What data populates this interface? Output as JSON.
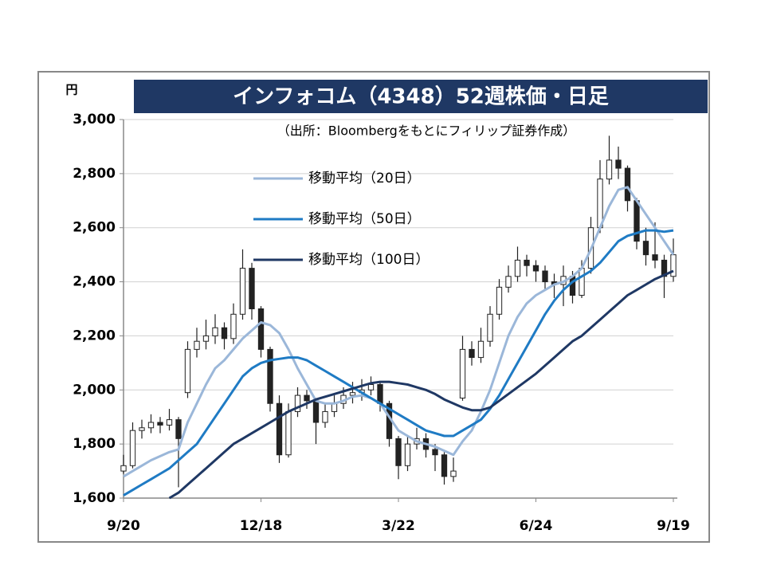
{
  "chart_data": {
    "type": "candlestick",
    "title": "インフォコム（4348）52週株価・日足",
    "subtitle": "（出所：Bloombergをもとにフィリップ証券作成）",
    "y_unit": "円",
    "categories": [
      "9/20",
      null,
      null,
      null,
      null,
      null,
      null,
      null,
      null,
      null,
      null,
      null,
      null,
      null,
      null,
      "12/18",
      null,
      null,
      null,
      null,
      null,
      null,
      null,
      null,
      null,
      null,
      null,
      null,
      null,
      null,
      "3/22",
      null,
      null,
      null,
      null,
      null,
      null,
      null,
      null,
      null,
      null,
      null,
      null,
      null,
      null,
      "6/24",
      null,
      null,
      null,
      null,
      null,
      null,
      null,
      null,
      null,
      null,
      null,
      null,
      null,
      null,
      "9/19"
    ],
    "open": [
      1700,
      1720,
      1850,
      1860,
      1880,
      1870,
      1890,
      1990,
      2150,
      2180,
      2200,
      2230,
      2190,
      2280,
      2450,
      2300,
      2150,
      1950,
      1760,
      1920,
      1980,
      1960,
      1880,
      1920,
      1950,
      1980,
      1990,
      2000,
      2020,
      1950,
      1820,
      1720,
      1800,
      1820,
      1780,
      1760,
      1680,
      1970,
      2150,
      2120,
      2180,
      2280,
      2380,
      2420,
      2480,
      2460,
      2440,
      2400,
      2390,
      2420,
      2350,
      2450,
      2600,
      2780,
      2850,
      2820,
      2700,
      2550,
      2500,
      2480,
      2420
    ],
    "high": [
      1760,
      1880,
      1890,
      1910,
      1900,
      1930,
      1900,
      2180,
      2230,
      2260,
      2280,
      2250,
      2320,
      2520,
      2470,
      2310,
      2160,
      1980,
      1950,
      2010,
      2000,
      1970,
      1950,
      1980,
      2010,
      2030,
      2040,
      2050,
      2030,
      1960,
      1830,
      1830,
      1860,
      1840,
      1800,
      1770,
      1750,
      2200,
      2180,
      2230,
      2310,
      2410,
      2460,
      2530,
      2500,
      2480,
      2460,
      2430,
      2460,
      2440,
      2480,
      2640,
      2850,
      2940,
      2900,
      2830,
      2710,
      2600,
      2620,
      2500,
      2560
    ],
    "low": [
      1690,
      1710,
      1820,
      1840,
      1840,
      1850,
      1640,
      1970,
      2120,
      2150,
      2170,
      2150,
      2170,
      2260,
      2260,
      2120,
      1920,
      1730,
      1750,
      1900,
      1930,
      1800,
      1860,
      1900,
      1930,
      1950,
      1960,
      1980,
      1920,
      1790,
      1670,
      1700,
      1780,
      1750,
      1700,
      1650,
      1660,
      1960,
      2090,
      2100,
      2160,
      2260,
      2360,
      2400,
      2420,
      2400,
      2370,
      2340,
      2310,
      2320,
      2340,
      2430,
      2580,
      2760,
      2780,
      2660,
      2520,
      2460,
      2450,
      2340,
      2400
    ],
    "close": [
      1720,
      1850,
      1860,
      1880,
      1870,
      1890,
      1820,
      2150,
      2180,
      2200,
      2230,
      2190,
      2280,
      2450,
      2300,
      2150,
      1950,
      1760,
      1920,
      1980,
      1960,
      1880,
      1920,
      1950,
      1980,
      1990,
      2000,
      2020,
      1950,
      1820,
      1720,
      1800,
      1820,
      1780,
      1760,
      1680,
      1700,
      2150,
      2120,
      2180,
      2280,
      2380,
      2420,
      2480,
      2460,
      2440,
      2400,
      2390,
      2420,
      2350,
      2450,
      2600,
      2780,
      2850,
      2820,
      2700,
      2550,
      2500,
      2480,
      2420,
      2500
    ],
    "series": [
      {
        "name": "移動平均（20日）",
        "color": "#9bb7d9",
        "values": [
          1680,
          1700,
          1720,
          1740,
          1755,
          1770,
          1780,
          1880,
          1950,
          2020,
          2080,
          2110,
          2150,
          2190,
          2220,
          2250,
          2240,
          2210,
          2150,
          2080,
          2020,
          1960,
          1950,
          1950,
          1960,
          1975,
          1980,
          1970,
          1950,
          1900,
          1850,
          1830,
          1810,
          1800,
          1790,
          1775,
          1760,
          1810,
          1850,
          1920,
          2000,
          2100,
          2200,
          2270,
          2320,
          2350,
          2370,
          2390,
          2400,
          2420,
          2450,
          2520,
          2600,
          2680,
          2740,
          2750,
          2700,
          2650,
          2600,
          2550,
          2500
        ]
      },
      {
        "name": "移動平均（50日）",
        "color": "#1f7bc4",
        "values": [
          1610,
          1630,
          1650,
          1670,
          1690,
          1710,
          1740,
          1770,
          1800,
          1850,
          1900,
          1950,
          2000,
          2050,
          2080,
          2100,
          2110,
          2115,
          2120,
          2120,
          2110,
          2090,
          2070,
          2050,
          2030,
          2010,
          1990,
          1970,
          1950,
          1930,
          1910,
          1890,
          1870,
          1850,
          1840,
          1830,
          1830,
          1850,
          1870,
          1890,
          1930,
          1980,
          2040,
          2100,
          2160,
          2220,
          2280,
          2330,
          2370,
          2400,
          2420,
          2440,
          2470,
          2510,
          2550,
          2570,
          2580,
          2590,
          2590,
          2585,
          2590
        ]
      },
      {
        "name": "移動平均（100日）",
        "color": "#1f3864",
        "values": [
          null,
          null,
          null,
          null,
          null,
          1600,
          1620,
          1650,
          1680,
          1710,
          1740,
          1770,
          1800,
          1820,
          1840,
          1860,
          1880,
          1900,
          1920,
          1935,
          1950,
          1965,
          1975,
          1985,
          1995,
          2005,
          2015,
          2025,
          2030,
          2030,
          2025,
          2020,
          2010,
          2000,
          1985,
          1965,
          1950,
          1935,
          1925,
          1925,
          1935,
          1960,
          1985,
          2010,
          2035,
          2060,
          2090,
          2120,
          2150,
          2180,
          2200,
          2230,
          2260,
          2290,
          2320,
          2350,
          2370,
          2390,
          2410,
          2425,
          2440
        ]
      }
    ],
    "ylim": [
      1600,
      3000
    ],
    "yticks": [
      {
        "value": 1600,
        "label": "1,600"
      },
      {
        "value": 1800,
        "label": "1,800"
      },
      {
        "value": 2000,
        "label": "2,000"
      },
      {
        "value": 2200,
        "label": "2,200"
      },
      {
        "value": 2400,
        "label": "2,400"
      },
      {
        "value": 2600,
        "label": "2,600"
      },
      {
        "value": 2800,
        "label": "2,800"
      },
      {
        "value": 3000,
        "label": "3,000"
      }
    ],
    "grid": true
  }
}
